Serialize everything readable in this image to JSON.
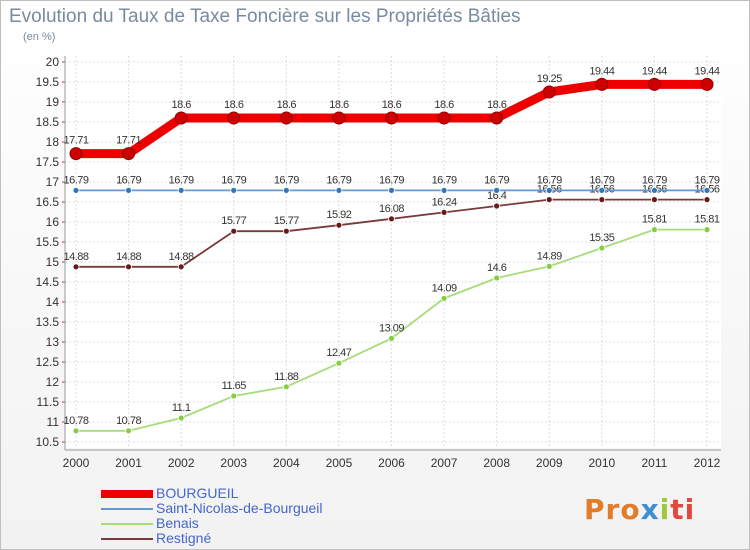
{
  "chart_data": {
    "type": "line",
    "title": "Evolution du Taux de Taxe Foncière sur les Propriétés Bâties",
    "subtitle": "(en %)",
    "xlabel": "",
    "ylabel": "",
    "categories": [
      "2000",
      "2001",
      "2002",
      "2003",
      "2004",
      "2005",
      "2006",
      "2007",
      "2008",
      "2009",
      "2010",
      "2011",
      "2012"
    ],
    "ylim": [
      10.5,
      20
    ],
    "yticks": [
      "20",
      "19.5",
      "19",
      "18.5",
      "18",
      "17.5",
      "17",
      "16.5",
      "16",
      "15.5",
      "15",
      "14.5",
      "14",
      "13.5",
      "13",
      "12.5",
      "12",
      "11.5",
      "11",
      "10.5"
    ],
    "grid": true,
    "legend_position": "bottom-left",
    "series": [
      {
        "name": "BOURGUEIL",
        "color": "#ee0000",
        "marker": "#cc0000",
        "width": "thick",
        "values": [
          17.71,
          17.71,
          18.6,
          18.6,
          18.6,
          18.6,
          18.6,
          18.6,
          18.6,
          19.25,
          19.44,
          19.44,
          19.44
        ],
        "labels": [
          "17.71",
          "17.71",
          "18.6",
          "18.6",
          "18.6",
          "18.6",
          "18.6",
          "18.6",
          "18.6",
          "19.25",
          "19.44",
          "19.44",
          "19.44"
        ]
      },
      {
        "name": "Saint-Nicolas-de-Bourgueil",
        "color": "#6699cc",
        "marker": "#3377bb",
        "width": "thin",
        "values": [
          16.79,
          16.79,
          16.79,
          16.79,
          16.79,
          16.79,
          16.79,
          16.79,
          16.79,
          16.79,
          16.79,
          16.79,
          16.79
        ],
        "labels": [
          "16.79",
          "16.79",
          "16.79",
          "16.79",
          "16.79",
          "16.79",
          "16.79",
          "16.79",
          "16.79",
          "16.79",
          "16.79",
          "16.79",
          "16.79"
        ]
      },
      {
        "name": "Benais",
        "color": "#a6dd7a",
        "marker": "#88cc44",
        "width": "thin",
        "values": [
          10.78,
          10.78,
          11.1,
          11.65,
          11.88,
          12.47,
          13.09,
          14.09,
          14.6,
          14.89,
          15.35,
          15.81,
          15.81
        ],
        "labels": [
          "10.78",
          "10.78",
          "11.1",
          "11.65",
          "11.88",
          "12.47",
          "13.09",
          "14.09",
          "14.6",
          "14.89",
          "15.35",
          "15.81",
          "15.81"
        ]
      },
      {
        "name": "Restigné",
        "color": "#7a3a3a",
        "marker": "#661a1a",
        "width": "thin",
        "values": [
          14.88,
          14.88,
          14.88,
          15.77,
          15.77,
          15.92,
          16.08,
          16.24,
          16.4,
          16.56,
          16.56,
          16.56,
          16.56
        ],
        "labels": [
          "14.88",
          "14.88",
          "14.88",
          "15.77",
          "15.77",
          "15.92",
          "16.08",
          "16.24",
          "16.4",
          "16.56",
          "16.56",
          "16.56",
          "16.56"
        ]
      }
    ]
  },
  "logo": {
    "p1": "Pro",
    "p2": "x",
    "p3": "i",
    "p4": "ti"
  }
}
